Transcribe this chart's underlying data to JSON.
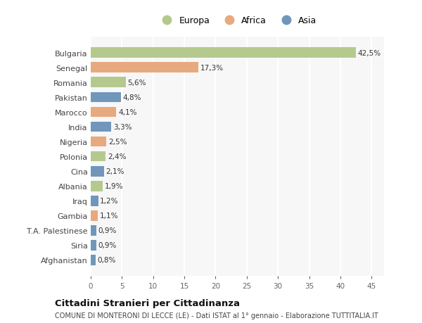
{
  "countries": [
    "Bulgaria",
    "Senegal",
    "Romania",
    "Pakistan",
    "Marocco",
    "India",
    "Nigeria",
    "Polonia",
    "Cina",
    "Albania",
    "Iraq",
    "Gambia",
    "T.A. Palestinese",
    "Siria",
    "Afghanistan"
  ],
  "values": [
    42.5,
    17.3,
    5.6,
    4.8,
    4.1,
    3.3,
    2.5,
    2.4,
    2.1,
    1.9,
    1.2,
    1.1,
    0.9,
    0.9,
    0.8
  ],
  "labels": [
    "42,5%",
    "17,3%",
    "5,6%",
    "4,8%",
    "4,1%",
    "3,3%",
    "2,5%",
    "2,4%",
    "2,1%",
    "1,9%",
    "1,2%",
    "1,1%",
    "0,9%",
    "0,9%",
    "0,8%"
  ],
  "continent": [
    "Europa",
    "Africa",
    "Europa",
    "Asia",
    "Africa",
    "Asia",
    "Africa",
    "Europa",
    "Asia",
    "Europa",
    "Asia",
    "Africa",
    "Asia",
    "Asia",
    "Asia"
  ],
  "colors": {
    "Europa": "#b5c98e",
    "Africa": "#e8a97e",
    "Asia": "#7097bb"
  },
  "title": "Cittadini Stranieri per Cittadinanza",
  "subtitle": "COMUNE DI MONTERONI DI LECCE (LE) - Dati ISTAT al 1° gennaio - Elaborazione TUTTITALIA.IT",
  "xlim": [
    0,
    47
  ],
  "xticks": [
    0,
    5,
    10,
    15,
    20,
    25,
    30,
    35,
    40,
    45
  ],
  "background_color": "#ffffff",
  "plot_bg_color": "#f7f7f7",
  "grid_color": "#ffffff",
  "bar_height": 0.7
}
